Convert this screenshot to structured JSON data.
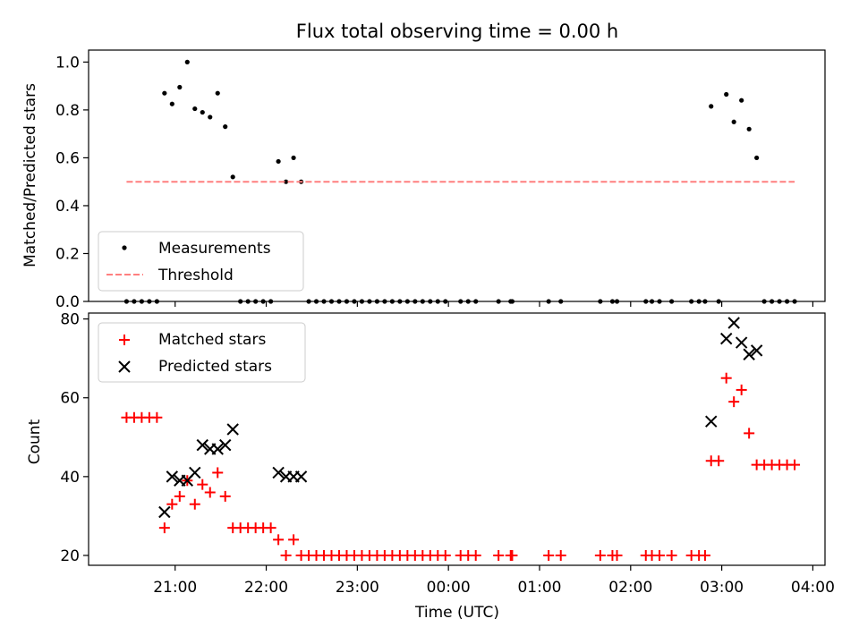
{
  "title": "Flux total observing time = 0.00 h",
  "colors": {
    "measurement": "#000000",
    "threshold": "#ff7f7f",
    "matched": "#ff0000",
    "predicted": "#000000"
  },
  "chart_data": [
    {
      "type": "scatter",
      "panel": "top",
      "ylabel": "Matched/Predicted stars",
      "xlabel": "",
      "ylim": [
        0,
        1.05
      ],
      "yticks": [
        "0.0",
        "0.2",
        "0.4",
        "0.6",
        "0.8",
        "1.0"
      ],
      "grid": false,
      "legend_position": "lower-left",
      "legend": [
        "Measurements",
        "Threshold"
      ],
      "series": [
        {
          "name": "Measurements",
          "marker": "dot",
          "points": [
            [
              "20:28",
              0
            ],
            [
              "20:33",
              0
            ],
            [
              "20:38",
              0
            ],
            [
              "20:43",
              0
            ],
            [
              "20:48",
              0
            ],
            [
              "20:53",
              0.87
            ],
            [
              "20:58",
              0.825
            ],
            [
              "21:03",
              0.895
            ],
            [
              "21:08",
              1.0
            ],
            [
              "21:13",
              0.805
            ],
            [
              "21:18",
              0.79
            ],
            [
              "21:23",
              0.77
            ],
            [
              "21:28",
              0.87
            ],
            [
              "21:33",
              0.73
            ],
            [
              "21:38",
              0.52
            ],
            [
              "21:43",
              0
            ],
            [
              "21:48",
              0
            ],
            [
              "21:53",
              0
            ],
            [
              "21:58",
              0
            ],
            [
              "22:03",
              0
            ],
            [
              "22:08",
              0.585
            ],
            [
              "22:13",
              0.5
            ],
            [
              "22:18",
              0.6
            ],
            [
              "22:23",
              0.5
            ],
            [
              "22:28",
              0
            ],
            [
              "22:33",
              0
            ],
            [
              "22:38",
              0
            ],
            [
              "22:43",
              0
            ],
            [
              "22:48",
              0
            ],
            [
              "22:53",
              0
            ],
            [
              "22:58",
              0
            ],
            [
              "23:03",
              0
            ],
            [
              "23:08",
              0
            ],
            [
              "23:13",
              0
            ],
            [
              "23:18",
              0
            ],
            [
              "23:23",
              0
            ],
            [
              "23:28",
              0
            ],
            [
              "23:33",
              0
            ],
            [
              "23:38",
              0
            ],
            [
              "23:43",
              0
            ],
            [
              "23:48",
              0
            ],
            [
              "23:53",
              0
            ],
            [
              "23:58",
              0
            ],
            [
              "00:08",
              0
            ],
            [
              "00:13",
              0
            ],
            [
              "00:18",
              0
            ],
            [
              "00:33",
              0
            ],
            [
              "00:41",
              0
            ],
            [
              "00:42",
              0
            ],
            [
              "01:06",
              0
            ],
            [
              "01:14",
              0
            ],
            [
              "01:40",
              0
            ],
            [
              "01:48",
              0
            ],
            [
              "01:51",
              0
            ],
            [
              "02:10",
              0
            ],
            [
              "02:14",
              0
            ],
            [
              "02:19",
              0
            ],
            [
              "02:27",
              0
            ],
            [
              "02:40",
              0
            ],
            [
              "02:45",
              0
            ],
            [
              "02:49",
              0
            ],
            [
              "02:53",
              0.815
            ],
            [
              "02:58",
              0
            ],
            [
              "03:03",
              0.865
            ],
            [
              "03:08",
              0.75
            ],
            [
              "03:13",
              0.84
            ],
            [
              "03:18",
              0.72
            ],
            [
              "03:23",
              0.6
            ],
            [
              "03:28",
              0
            ],
            [
              "03:33",
              0
            ],
            [
              "03:38",
              0
            ],
            [
              "03:43",
              0
            ],
            [
              "03:48",
              0
            ]
          ]
        },
        {
          "name": "Threshold",
          "style": "dashed",
          "points": [
            [
              "20:28",
              0.5
            ],
            [
              "03:48",
              0.5
            ]
          ]
        }
      ]
    },
    {
      "type": "scatter",
      "panel": "bottom",
      "xlabel": "Time (UTC)",
      "ylabel": "Count",
      "ylim": [
        17.5,
        81.5
      ],
      "yticks": [
        "20",
        "40",
        "60",
        "80"
      ],
      "xticks": [
        "21:00",
        "22:00",
        "23:00",
        "00:00",
        "01:00",
        "02:00",
        "03:00",
        "04:00"
      ],
      "xlim": [
        "20:03",
        "04:08"
      ],
      "grid": false,
      "legend_position": "top-left",
      "legend": [
        "Matched stars",
        "Predicted stars"
      ],
      "series": [
        {
          "name": "Matched stars",
          "marker": "plus",
          "points": [
            [
              "20:28",
              55
            ],
            [
              "20:33",
              55
            ],
            [
              "20:38",
              55
            ],
            [
              "20:43",
              55
            ],
            [
              "20:48",
              55
            ],
            [
              "20:53",
              27
            ],
            [
              "20:58",
              33
            ],
            [
              "21:03",
              35
            ],
            [
              "21:08",
              39
            ],
            [
              "21:13",
              33
            ],
            [
              "21:18",
              38
            ],
            [
              "21:23",
              36
            ],
            [
              "21:28",
              41
            ],
            [
              "21:33",
              35
            ],
            [
              "21:38",
              27
            ],
            [
              "21:43",
              27
            ],
            [
              "21:48",
              27
            ],
            [
              "21:53",
              27
            ],
            [
              "21:58",
              27
            ],
            [
              "22:03",
              27
            ],
            [
              "22:08",
              24
            ],
            [
              "22:13",
              20
            ],
            [
              "22:18",
              24
            ],
            [
              "22:23",
              20
            ],
            [
              "22:28",
              20
            ],
            [
              "22:33",
              20
            ],
            [
              "22:38",
              20
            ],
            [
              "22:43",
              20
            ],
            [
              "22:48",
              20
            ],
            [
              "22:53",
              20
            ],
            [
              "22:58",
              20
            ],
            [
              "23:03",
              20
            ],
            [
              "23:08",
              20
            ],
            [
              "23:13",
              20
            ],
            [
              "23:18",
              20
            ],
            [
              "23:23",
              20
            ],
            [
              "23:28",
              20
            ],
            [
              "23:33",
              20
            ],
            [
              "23:38",
              20
            ],
            [
              "23:43",
              20
            ],
            [
              "23:48",
              20
            ],
            [
              "23:53",
              20
            ],
            [
              "23:58",
              20
            ],
            [
              "00:08",
              20
            ],
            [
              "00:13",
              20
            ],
            [
              "00:18",
              20
            ],
            [
              "00:33",
              20
            ],
            [
              "00:41",
              20
            ],
            [
              "00:42",
              20
            ],
            [
              "01:06",
              20
            ],
            [
              "01:14",
              20
            ],
            [
              "01:40",
              20
            ],
            [
              "01:48",
              20
            ],
            [
              "01:51",
              20
            ],
            [
              "02:10",
              20
            ],
            [
              "02:14",
              20
            ],
            [
              "02:19",
              20
            ],
            [
              "02:27",
              20
            ],
            [
              "02:40",
              20
            ],
            [
              "02:45",
              20
            ],
            [
              "02:49",
              20
            ],
            [
              "02:53",
              44
            ],
            [
              "02:58",
              44
            ],
            [
              "03:03",
              65
            ],
            [
              "03:08",
              59
            ],
            [
              "03:13",
              62
            ],
            [
              "03:18",
              51
            ],
            [
              "03:23",
              43
            ],
            [
              "03:28",
              43
            ],
            [
              "03:33",
              43
            ],
            [
              "03:38",
              43
            ],
            [
              "03:43",
              43
            ],
            [
              "03:48",
              43
            ]
          ]
        },
        {
          "name": "Predicted stars",
          "marker": "x",
          "points": [
            [
              "20:53",
              31
            ],
            [
              "20:58",
              40
            ],
            [
              "21:03",
              39
            ],
            [
              "21:08",
              39
            ],
            [
              "21:13",
              41
            ],
            [
              "21:18",
              48
            ],
            [
              "21:23",
              47
            ],
            [
              "21:28",
              47
            ],
            [
              "21:33",
              48
            ],
            [
              "21:38",
              52
            ],
            [
              "22:08",
              41
            ],
            [
              "22:13",
              40
            ],
            [
              "22:18",
              40
            ],
            [
              "22:23",
              40
            ],
            [
              "02:53",
              54
            ],
            [
              "03:03",
              75
            ],
            [
              "03:08",
              79
            ],
            [
              "03:13",
              74
            ],
            [
              "03:18",
              71
            ],
            [
              "03:23",
              72
            ]
          ]
        }
      ]
    }
  ]
}
